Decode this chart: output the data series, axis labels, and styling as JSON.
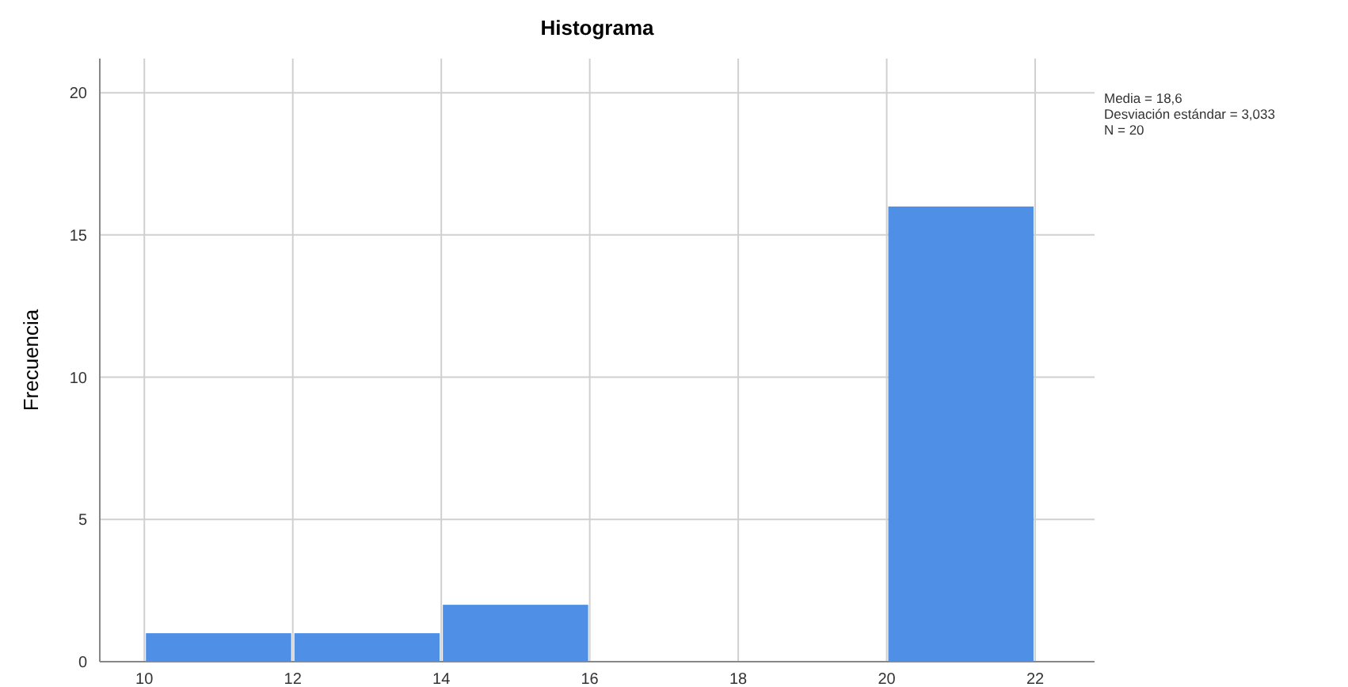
{
  "chart_data": {
    "type": "histogram",
    "title": "Histograma",
    "ylabel": "Frecuencia",
    "bins": [
      10,
      12,
      14,
      16,
      18,
      20,
      22
    ],
    "values": [
      1,
      1,
      2,
      0,
      0,
      16
    ],
    "color": "#4f8fe6",
    "xlim": [
      9.4,
      22.8
    ],
    "ylim": [
      0,
      21.2
    ],
    "xticks": [
      10,
      12,
      14,
      16,
      18,
      20,
      22
    ],
    "yticks": [
      0,
      5,
      10,
      15,
      20
    ],
    "grid": true,
    "annotations": [
      "Media = 18,6",
      "Desviación estándar = 3,033",
      "N = 20"
    ]
  }
}
